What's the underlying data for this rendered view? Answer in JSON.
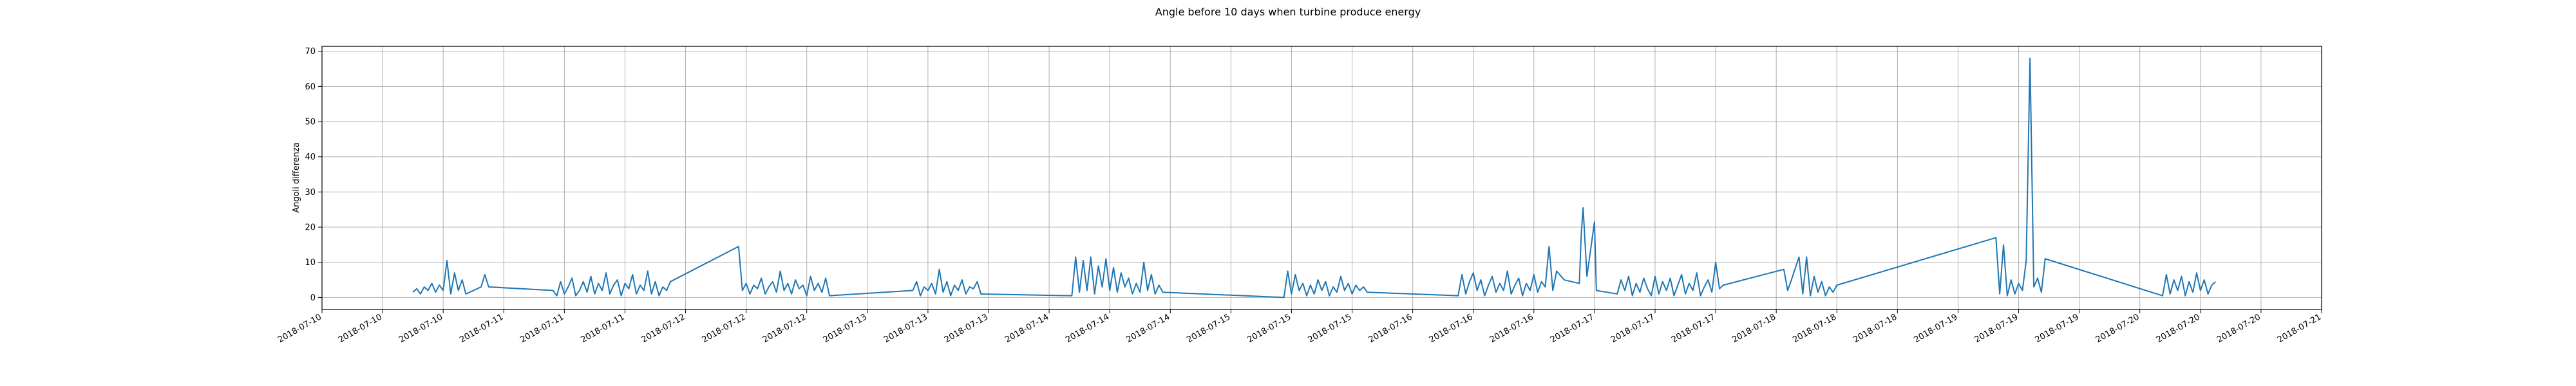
{
  "chart_data": {
    "type": "line",
    "title": "Angle before 10 days when turbine produce energy",
    "xlabel": "",
    "ylabel": "Angoli differenza",
    "ylim": [
      -3.4,
      71.4
    ],
    "grid": true,
    "line_color": "#1f77b4",
    "y_ticks": [
      0,
      10,
      20,
      30,
      40,
      50,
      60,
      70
    ],
    "x_tick_labels": [
      "2018-07-10",
      "2018-07-10",
      "2018-07-10",
      "2018-07-11",
      "2018-07-11",
      "2018-07-11",
      "2018-07-12",
      "2018-07-12",
      "2018-07-12",
      "2018-07-13",
      "2018-07-13",
      "2018-07-13",
      "2018-07-14",
      "2018-07-14",
      "2018-07-14",
      "2018-07-15",
      "2018-07-15",
      "2018-07-15",
      "2018-07-16",
      "2018-07-16",
      "2018-07-16",
      "2018-07-17",
      "2018-07-17",
      "2018-07-17",
      "2018-07-18",
      "2018-07-18",
      "2018-07-18",
      "2018-07-19",
      "2018-07-19",
      "2018-07-19",
      "2018-07-20",
      "2018-07-20",
      "2018-07-20",
      "2018-07-21"
    ],
    "xlim": [
      "2018-07-10T00:00",
      "2018-07-21T00:00"
    ],
    "series": [
      {
        "x": [
          "2018-07-10T12:00",
          "2018-07-10T12:30",
          "2018-07-10T13:00",
          "2018-07-10T13:30",
          "2018-07-10T14:00",
          "2018-07-10T14:30",
          "2018-07-10T15:00",
          "2018-07-10T15:30",
          "2018-07-10T16:00",
          "2018-07-10T16:30",
          "2018-07-10T17:00",
          "2018-07-10T17:30",
          "2018-07-10T18:00",
          "2018-07-10T18:30",
          "2018-07-10T19:00",
          "2018-07-10T21:00",
          "2018-07-10T21:30",
          "2018-07-10T22:00",
          "2018-07-11T06:30",
          "2018-07-11T07:00",
          "2018-07-11T07:30",
          "2018-07-11T08:00",
          "2018-07-11T08:30",
          "2018-07-11T09:00",
          "2018-07-11T09:30",
          "2018-07-11T10:00",
          "2018-07-11T10:30",
          "2018-07-11T11:00",
          "2018-07-11T11:30",
          "2018-07-11T12:00",
          "2018-07-11T12:30",
          "2018-07-11T13:00",
          "2018-07-11T13:30",
          "2018-07-11T14:00",
          "2018-07-11T14:30",
          "2018-07-11T15:00",
          "2018-07-11T15:30",
          "2018-07-11T16:00",
          "2018-07-11T16:30",
          "2018-07-11T17:00",
          "2018-07-11T17:30",
          "2018-07-11T18:00",
          "2018-07-11T18:30",
          "2018-07-11T19:00",
          "2018-07-11T19:30",
          "2018-07-11T20:00",
          "2018-07-11T20:30",
          "2018-07-11T21:00",
          "2018-07-11T21:30",
          "2018-07-11T22:00",
          "2018-07-12T07:00",
          "2018-07-12T07:30",
          "2018-07-12T08:00",
          "2018-07-12T08:30",
          "2018-07-12T09:00",
          "2018-07-12T09:30",
          "2018-07-12T10:00",
          "2018-07-12T10:30",
          "2018-07-12T11:00",
          "2018-07-12T11:30",
          "2018-07-12T12:00",
          "2018-07-12T12:30",
          "2018-07-12T13:00",
          "2018-07-12T13:30",
          "2018-07-12T14:00",
          "2018-07-12T14:30",
          "2018-07-12T15:00",
          "2018-07-12T15:30",
          "2018-07-12T16:00",
          "2018-07-12T16:30",
          "2018-07-12T17:00",
          "2018-07-12T17:30",
          "2018-07-12T18:00",
          "2018-07-12T18:30",
          "2018-07-12T19:00",
          "2018-07-13T06:00",
          "2018-07-13T06:30",
          "2018-07-13T07:00",
          "2018-07-13T07:30",
          "2018-07-13T08:00",
          "2018-07-13T08:30",
          "2018-07-13T09:00",
          "2018-07-13T09:30",
          "2018-07-13T10:00",
          "2018-07-13T10:30",
          "2018-07-13T11:00",
          "2018-07-13T11:30",
          "2018-07-13T12:00",
          "2018-07-13T12:30",
          "2018-07-13T13:00",
          "2018-07-13T13:30",
          "2018-07-13T14:00",
          "2018-07-13T14:30",
          "2018-07-13T15:00",
          "2018-07-14T03:00",
          "2018-07-14T03:30",
          "2018-07-14T04:00",
          "2018-07-14T04:30",
          "2018-07-14T05:00",
          "2018-07-14T05:30",
          "2018-07-14T06:00",
          "2018-07-14T06:30",
          "2018-07-14T07:00",
          "2018-07-14T07:30",
          "2018-07-14T08:00",
          "2018-07-14T08:30",
          "2018-07-14T09:00",
          "2018-07-14T09:30",
          "2018-07-14T10:00",
          "2018-07-14T10:30",
          "2018-07-14T11:00",
          "2018-07-14T11:30",
          "2018-07-14T12:00",
          "2018-07-14T12:30",
          "2018-07-14T13:00",
          "2018-07-14T13:30",
          "2018-07-14T14:00",
          "2018-07-14T14:30",
          "2018-07-14T15:00",
          "2018-07-15T07:00",
          "2018-07-15T07:30",
          "2018-07-15T08:00",
          "2018-07-15T08:30",
          "2018-07-15T09:00",
          "2018-07-15T09:30",
          "2018-07-15T10:00",
          "2018-07-15T10:30",
          "2018-07-15T11:00",
          "2018-07-15T11:30",
          "2018-07-15T12:00",
          "2018-07-15T12:30",
          "2018-07-15T13:00",
          "2018-07-15T13:30",
          "2018-07-15T14:00",
          "2018-07-15T14:30",
          "2018-07-15T15:00",
          "2018-07-15T15:30",
          "2018-07-15T16:00",
          "2018-07-15T16:30",
          "2018-07-15T17:00",
          "2018-07-15T17:30",
          "2018-07-15T18:00",
          "2018-07-16T06:00",
          "2018-07-16T06:30",
          "2018-07-16T07:00",
          "2018-07-16T07:30",
          "2018-07-16T08:00",
          "2018-07-16T08:30",
          "2018-07-16T09:00",
          "2018-07-16T09:30",
          "2018-07-16T10:00",
          "2018-07-16T10:30",
          "2018-07-16T11:00",
          "2018-07-16T11:30",
          "2018-07-16T12:00",
          "2018-07-16T12:30",
          "2018-07-16T13:00",
          "2018-07-16T13:30",
          "2018-07-16T14:00",
          "2018-07-16T14:30",
          "2018-07-16T15:00",
          "2018-07-16T15:30",
          "2018-07-16T16:00",
          "2018-07-16T16:30",
          "2018-07-16T17:00",
          "2018-07-16T17:30",
          "2018-07-16T18:00",
          "2018-07-16T18:30",
          "2018-07-16T19:00",
          "2018-07-16T20:00",
          "2018-07-16T22:00",
          "2018-07-16T22:15",
          "2018-07-16T22:30",
          "2018-07-16T23:00",
          "2018-07-17T00:00",
          "2018-07-17T00:15",
          "2018-07-17T03:00",
          "2018-07-17T03:30",
          "2018-07-17T04:00",
          "2018-07-17T04:30",
          "2018-07-17T05:00",
          "2018-07-17T05:30",
          "2018-07-17T06:00",
          "2018-07-17T06:30",
          "2018-07-17T07:00",
          "2018-07-17T07:30",
          "2018-07-17T08:00",
          "2018-07-17T08:30",
          "2018-07-17T09:00",
          "2018-07-17T09:30",
          "2018-07-17T10:00",
          "2018-07-17T10:30",
          "2018-07-17T11:00",
          "2018-07-17T11:30",
          "2018-07-17T12:00",
          "2018-07-17T12:30",
          "2018-07-17T13:00",
          "2018-07-17T13:30",
          "2018-07-17T14:00",
          "2018-07-17T14:30",
          "2018-07-17T15:00",
          "2018-07-17T15:30",
          "2018-07-17T16:00",
          "2018-07-17T16:30",
          "2018-07-17T17:00",
          "2018-07-18T01:00",
          "2018-07-18T01:30",
          "2018-07-18T02:00",
          "2018-07-18T03:00",
          "2018-07-18T03:30",
          "2018-07-18T04:00",
          "2018-07-18T04:30",
          "2018-07-18T05:00",
          "2018-07-18T05:30",
          "2018-07-18T06:00",
          "2018-07-18T06:30",
          "2018-07-18T07:00",
          "2018-07-18T07:30",
          "2018-07-18T08:00",
          "2018-07-19T05:00",
          "2018-07-19T05:30",
          "2018-07-19T06:00",
          "2018-07-19T06:30",
          "2018-07-19T07:00",
          "2018-07-19T07:30",
          "2018-07-19T08:00",
          "2018-07-19T08:30",
          "2018-07-19T09:00",
          "2018-07-19T09:30",
          "2018-07-19T10:00",
          "2018-07-19T10:30",
          "2018-07-19T11:00",
          "2018-07-19T11:30",
          "2018-07-20T03:00",
          "2018-07-20T03:30",
          "2018-07-20T04:00",
          "2018-07-20T04:30",
          "2018-07-20T05:00",
          "2018-07-20T05:30",
          "2018-07-20T06:00",
          "2018-07-20T06:30",
          "2018-07-20T07:00",
          "2018-07-20T07:30",
          "2018-07-20T08:00",
          "2018-07-20T08:30",
          "2018-07-20T09:00",
          "2018-07-20T09:30",
          "2018-07-20T10:00"
        ],
        "y": [
          1.5,
          2.5,
          1.0,
          3.0,
          2.0,
          4.0,
          1.5,
          3.5,
          2.0,
          10.5,
          1.0,
          7.0,
          2.0,
          5.0,
          1.0,
          3.0,
          6.5,
          3.0,
          2.0,
          0.5,
          4.5,
          1.0,
          3.0,
          5.5,
          0.5,
          2.0,
          4.5,
          1.5,
          6.0,
          1.0,
          4.0,
          2.0,
          7.0,
          1.0,
          3.5,
          5.0,
          0.5,
          4.0,
          2.5,
          6.5,
          1.0,
          3.5,
          2.0,
          7.5,
          1.0,
          4.5,
          0.5,
          3.0,
          2.0,
          4.5,
          14.5,
          2.0,
          4.0,
          1.0,
          3.5,
          2.5,
          5.5,
          1.0,
          3.0,
          4.5,
          1.5,
          7.5,
          2.0,
          4.0,
          1.0,
          5.0,
          2.5,
          3.5,
          0.5,
          6.0,
          2.0,
          4.0,
          1.5,
          5.5,
          0.5,
          2.0,
          4.5,
          0.5,
          3.0,
          2.0,
          4.0,
          1.0,
          8.0,
          1.5,
          4.5,
          0.5,
          3.5,
          2.0,
          5.0,
          1.0,
          3.0,
          2.5,
          4.5,
          1.0,
          0.5,
          11.5,
          1.5,
          10.5,
          2.0,
          11.5,
          1.0,
          9.0,
          3.0,
          11.0,
          2.0,
          8.5,
          1.5,
          7.0,
          3.0,
          5.5,
          1.0,
          4.0,
          1.5,
          10.0,
          2.0,
          6.5,
          1.0,
          3.5,
          1.5,
          0.0,
          7.5,
          1.0,
          6.5,
          2.0,
          4.0,
          0.5,
          3.5,
          1.0,
          5.0,
          2.0,
          4.5,
          0.5,
          3.0,
          1.5,
          6.0,
          2.0,
          4.0,
          1.0,
          3.5,
          2.0,
          3.0,
          1.5,
          0.5,
          6.5,
          1.0,
          4.5,
          7.0,
          2.0,
          5.0,
          0.5,
          3.5,
          6.0,
          1.5,
          4.0,
          2.0,
          7.5,
          1.0,
          3.5,
          5.5,
          0.5,
          4.0,
          2.0,
          6.5,
          1.5,
          4.5,
          3.0,
          14.5,
          2.0,
          7.5,
          5.0,
          4.0,
          18.0,
          25.5,
          6.0,
          21.5,
          2.0,
          1.0,
          5.0,
          2.0,
          6.0,
          0.5,
          4.0,
          1.5,
          5.5,
          2.5,
          0.5,
          6.0,
          1.0,
          4.5,
          2.0,
          5.5,
          0.5,
          3.5,
          6.5,
          1.0,
          4.0,
          2.0,
          7.0,
          0.5,
          3.0,
          5.0,
          1.5,
          10.0,
          2.5,
          3.5,
          8.0,
          2.0,
          5.0,
          11.5,
          1.0,
          11.5,
          0.5,
          6.0,
          1.5,
          4.5,
          0.5,
          3.0,
          1.5,
          3.5,
          17.0,
          1.0,
          15.0,
          0.5,
          5.0,
          1.0,
          4.0,
          2.0,
          10.5,
          68.0,
          3.0,
          5.5,
          1.5,
          11.0,
          0.5,
          6.5,
          1.0,
          5.0,
          2.0,
          6.0,
          0.5,
          4.5,
          1.5,
          7.0,
          2.0,
          5.0,
          1.0,
          3.5,
          4.5
        ]
      }
    ]
  }
}
